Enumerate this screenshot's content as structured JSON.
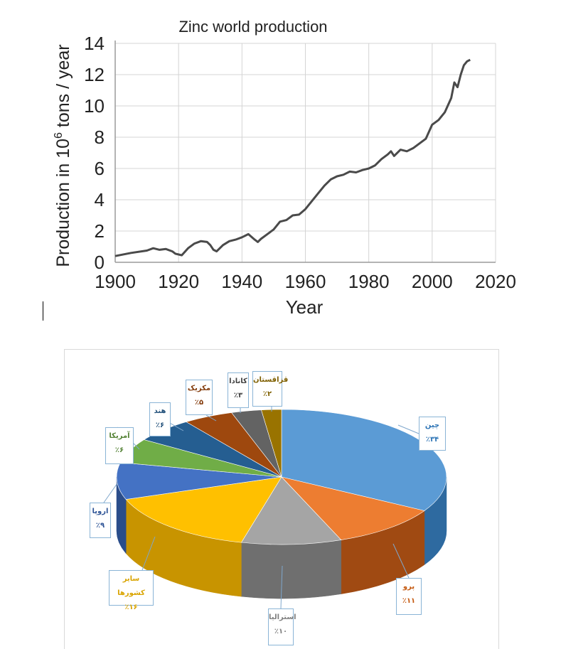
{
  "chart_data": [
    {
      "type": "line",
      "title": "Zinc world production",
      "xlabel": "Year",
      "ylabel_prefix": "Production in 10",
      "ylabel_exp": "6",
      "ylabel_suffix": " tons / year",
      "xlim": [
        1900,
        2020
      ],
      "ylim": [
        0,
        14
      ],
      "x_ticks": [
        "1900",
        "1920",
        "1940",
        "1960",
        "1980",
        "2000",
        "2020"
      ],
      "y_ticks": [
        "0",
        "2",
        "4",
        "6",
        "8",
        "10",
        "12",
        "14"
      ],
      "grid": true,
      "line_color": "#4a4a4a",
      "x": [
        1900,
        1905,
        1910,
        1912,
        1914,
        1916,
        1918,
        1919,
        1920,
        1921,
        1923,
        1925,
        1927,
        1929,
        1930,
        1931,
        1932,
        1934,
        1936,
        1938,
        1940,
        1942,
        1944,
        1945,
        1946,
        1948,
        1950,
        1952,
        1954,
        1956,
        1958,
        1960,
        1962,
        1964,
        1966,
        1968,
        1970,
        1972,
        1974,
        1976,
        1978,
        1980,
        1982,
        1984,
        1986,
        1987,
        1988,
        1990,
        1992,
        1994,
        1996,
        1998,
        2000,
        2002,
        2004,
        2006,
        2007,
        2008,
        2009,
        2010,
        2011,
        2012
      ],
      "y": [
        0.4,
        0.6,
        0.75,
        0.9,
        0.8,
        0.85,
        0.7,
        0.55,
        0.5,
        0.45,
        0.9,
        1.2,
        1.35,
        1.3,
        1.1,
        0.8,
        0.7,
        1.1,
        1.35,
        1.45,
        1.6,
        1.8,
        1.45,
        1.3,
        1.5,
        1.8,
        2.1,
        2.6,
        2.7,
        3.0,
        3.05,
        3.4,
        3.9,
        4.4,
        4.9,
        5.3,
        5.5,
        5.6,
        5.8,
        5.75,
        5.9,
        6.0,
        6.2,
        6.6,
        6.9,
        7.1,
        6.8,
        7.2,
        7.1,
        7.3,
        7.6,
        7.9,
        8.8,
        9.1,
        9.6,
        10.5,
        11.5,
        11.2,
        12.0,
        12.6,
        12.85,
        12.95
      ]
    },
    {
      "type": "pie",
      "slices": [
        {
          "label": "چین",
          "value_label": "٪۳۴",
          "value": 34,
          "color": "#5b9bd5",
          "side": "#2e6aa0",
          "text_color": "#2e75b6"
        },
        {
          "label": "پرو",
          "value_label": "٪۱۱",
          "value": 11,
          "color": "#ed7d31",
          "side": "#a04a12",
          "text_color": "#c55a11"
        },
        {
          "label": "استرالیا",
          "value_label": "٪۱۰",
          "value": 10,
          "color": "#a5a5a5",
          "side": "#6f6f6f",
          "text_color": "#7f7f7f"
        },
        {
          "label": "سایر کشورها",
          "value_label": "٪۱۶",
          "value": 16,
          "color": "#ffc000",
          "side": "#c89400",
          "text_color": "#d9a400"
        },
        {
          "label": "اروپا",
          "value_label": "٪۹",
          "value": 9,
          "color": "#4472c4",
          "side": "#2a4d8a",
          "text_color": "#2f5597"
        },
        {
          "label": "آمریکا",
          "value_label": "٪۶",
          "value": 6,
          "color": "#70ad47",
          "side": "#4d7a30",
          "text_color": "#548235"
        },
        {
          "label": "هند",
          "value_label": "٪۶",
          "value": 6,
          "color": "#255e91",
          "side": "#173c5e",
          "text_color": "#1f4e79"
        },
        {
          "label": "مکزیک",
          "value_label": "٪۵",
          "value": 5,
          "color": "#9e480e",
          "side": "#6a2f08",
          "text_color": "#843c0c"
        },
        {
          "label": "کانادا",
          "value_label": "٪۳",
          "value": 3,
          "color": "#636363",
          "side": "#404040",
          "text_color": "#404040"
        },
        {
          "label": "قزاقستان",
          "value_label": "٪۲",
          "value": 2,
          "color": "#997300",
          "side": "#664d00",
          "text_color": "#7f6000"
        }
      ]
    }
  ]
}
